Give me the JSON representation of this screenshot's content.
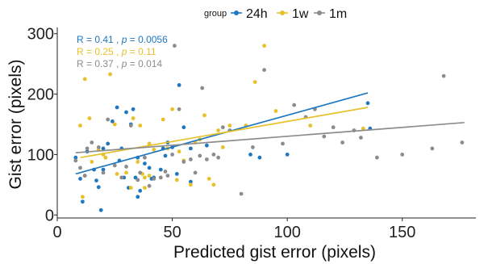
{
  "chart_data": {
    "type": "scatter",
    "xlabel": "Predicted gist error (pixels)",
    "ylabel": "Gist error (pixels)",
    "xlim": [
      0,
      182
    ],
    "ylim": [
      -5,
      305
    ],
    "xticks": [
      "0",
      "50",
      "100",
      "150"
    ],
    "yticks": [
      "0",
      "100",
      "200",
      "300"
    ],
    "legend": {
      "title": "group",
      "position": "top"
    },
    "annotations": [
      {
        "prefix": "R = 0.41 , ",
        "p_label": "p",
        "suffix": " = 0.0056",
        "color": "#1f77c0"
      },
      {
        "prefix": "R = 0.25 , ",
        "p_label": "p",
        "suffix": " = 0.11",
        "color": "#e6c12a"
      },
      {
        "prefix": "R = 0.37 , ",
        "p_label": "p",
        "suffix": " = 0.014",
        "color": "#8c8c8c"
      }
    ],
    "series": [
      {
        "name": "24h",
        "color": "#1f77c0",
        "trend": {
          "x": [
            8,
            135
          ],
          "y": [
            68,
            202
          ]
        },
        "points": [
          [
            8,
            95
          ],
          [
            10,
            60
          ],
          [
            11,
            22
          ],
          [
            12,
            65
          ],
          [
            13,
            105
          ],
          [
            16,
            75
          ],
          [
            17,
            57
          ],
          [
            18,
            46
          ],
          [
            20,
            75
          ],
          [
            20,
            110
          ],
          [
            19,
            8
          ],
          [
            22,
            118
          ],
          [
            24,
            155
          ],
          [
            26,
            178
          ],
          [
            27,
            90
          ],
          [
            28,
            110
          ],
          [
            29,
            62
          ],
          [
            30,
            170
          ],
          [
            31,
            45
          ],
          [
            32,
            150
          ],
          [
            33,
            175
          ],
          [
            34,
            62
          ],
          [
            35,
            95
          ],
          [
            35,
            30
          ],
          [
            36,
            40
          ],
          [
            38,
            85
          ],
          [
            40,
            78
          ],
          [
            41,
            60
          ],
          [
            42,
            62
          ],
          [
            45,
            75
          ],
          [
            46,
            110
          ],
          [
            47,
            98
          ],
          [
            48,
            120
          ],
          [
            50,
            112
          ],
          [
            52,
            68
          ],
          [
            53,
            215
          ],
          [
            55,
            145
          ],
          [
            58,
            55
          ],
          [
            58,
            110
          ],
          [
            65,
            115
          ],
          [
            84,
            100
          ],
          [
            88,
            95
          ],
          [
            100,
            100
          ],
          [
            135,
            185
          ],
          [
            136,
            143
          ]
        ]
      },
      {
        "name": "1w",
        "color": "#e6c12a",
        "trend": {
          "x": [
            10,
            135
          ],
          "y": [
            95,
            178
          ]
        },
        "points": [
          [
            10,
            148
          ],
          [
            11,
            30
          ],
          [
            12,
            225
          ],
          [
            14,
            160
          ],
          [
            15,
            88
          ],
          [
            18,
            108
          ],
          [
            20,
            100
          ],
          [
            21,
            95
          ],
          [
            23,
            233
          ],
          [
            25,
            150
          ],
          [
            26,
            68
          ],
          [
            28,
            62
          ],
          [
            30,
            70
          ],
          [
            32,
            45
          ],
          [
            33,
            160
          ],
          [
            35,
            88
          ],
          [
            36,
            148
          ],
          [
            37,
            68
          ],
          [
            38,
            62
          ],
          [
            38,
            45
          ],
          [
            40,
            65
          ],
          [
            40,
            118
          ],
          [
            42,
            108
          ],
          [
            45,
            62
          ],
          [
            46,
            158
          ],
          [
            48,
            110
          ],
          [
            50,
            175
          ],
          [
            52,
            58
          ],
          [
            53,
            105
          ],
          [
            55,
            90
          ],
          [
            58,
            50
          ],
          [
            60,
            120
          ],
          [
            62,
            125
          ],
          [
            64,
            165
          ],
          [
            66,
            60
          ],
          [
            68,
            50
          ],
          [
            70,
            140
          ],
          [
            72,
            112
          ],
          [
            75,
            148
          ],
          [
            82,
            148
          ],
          [
            86,
            220
          ],
          [
            90,
            280
          ],
          [
            95,
            172
          ],
          [
            110,
            148
          ],
          [
            133,
            143
          ]
        ]
      },
      {
        "name": "1m",
        "color": "#8c8c8c",
        "trend": {
          "x": [
            8,
            177
          ],
          "y": [
            103,
            153
          ]
        },
        "points": [
          [
            8,
            90
          ],
          [
            10,
            78
          ],
          [
            12,
            65
          ],
          [
            13,
            110
          ],
          [
            15,
            120
          ],
          [
            18,
            112
          ],
          [
            20,
            70
          ],
          [
            22,
            158
          ],
          [
            25,
            82
          ],
          [
            28,
            62
          ],
          [
            30,
            80
          ],
          [
            32,
            148
          ],
          [
            35,
            58
          ],
          [
            36,
            70
          ],
          [
            38,
            95
          ],
          [
            40,
            48
          ],
          [
            42,
            60
          ],
          [
            45,
            62
          ],
          [
            47,
            72
          ],
          [
            48,
            65
          ],
          [
            50,
            100
          ],
          [
            51,
            280
          ],
          [
            53,
            175
          ],
          [
            55,
            88
          ],
          [
            58,
            92
          ],
          [
            60,
            70
          ],
          [
            62,
            98
          ],
          [
            63,
            210
          ],
          [
            65,
            92
          ],
          [
            68,
            100
          ],
          [
            70,
            95
          ],
          [
            72,
            145
          ],
          [
            75,
            140
          ],
          [
            80,
            35
          ],
          [
            85,
            112
          ],
          [
            90,
            240
          ],
          [
            98,
            118
          ],
          [
            103,
            182
          ],
          [
            108,
            162
          ],
          [
            112,
            175
          ],
          [
            116,
            130
          ],
          [
            120,
            145
          ],
          [
            124,
            120
          ],
          [
            129,
            140
          ],
          [
            132,
            128
          ],
          [
            139,
            95
          ],
          [
            150,
            100
          ],
          [
            163,
            110
          ],
          [
            168,
            230
          ],
          [
            176,
            120
          ]
        ]
      }
    ]
  }
}
